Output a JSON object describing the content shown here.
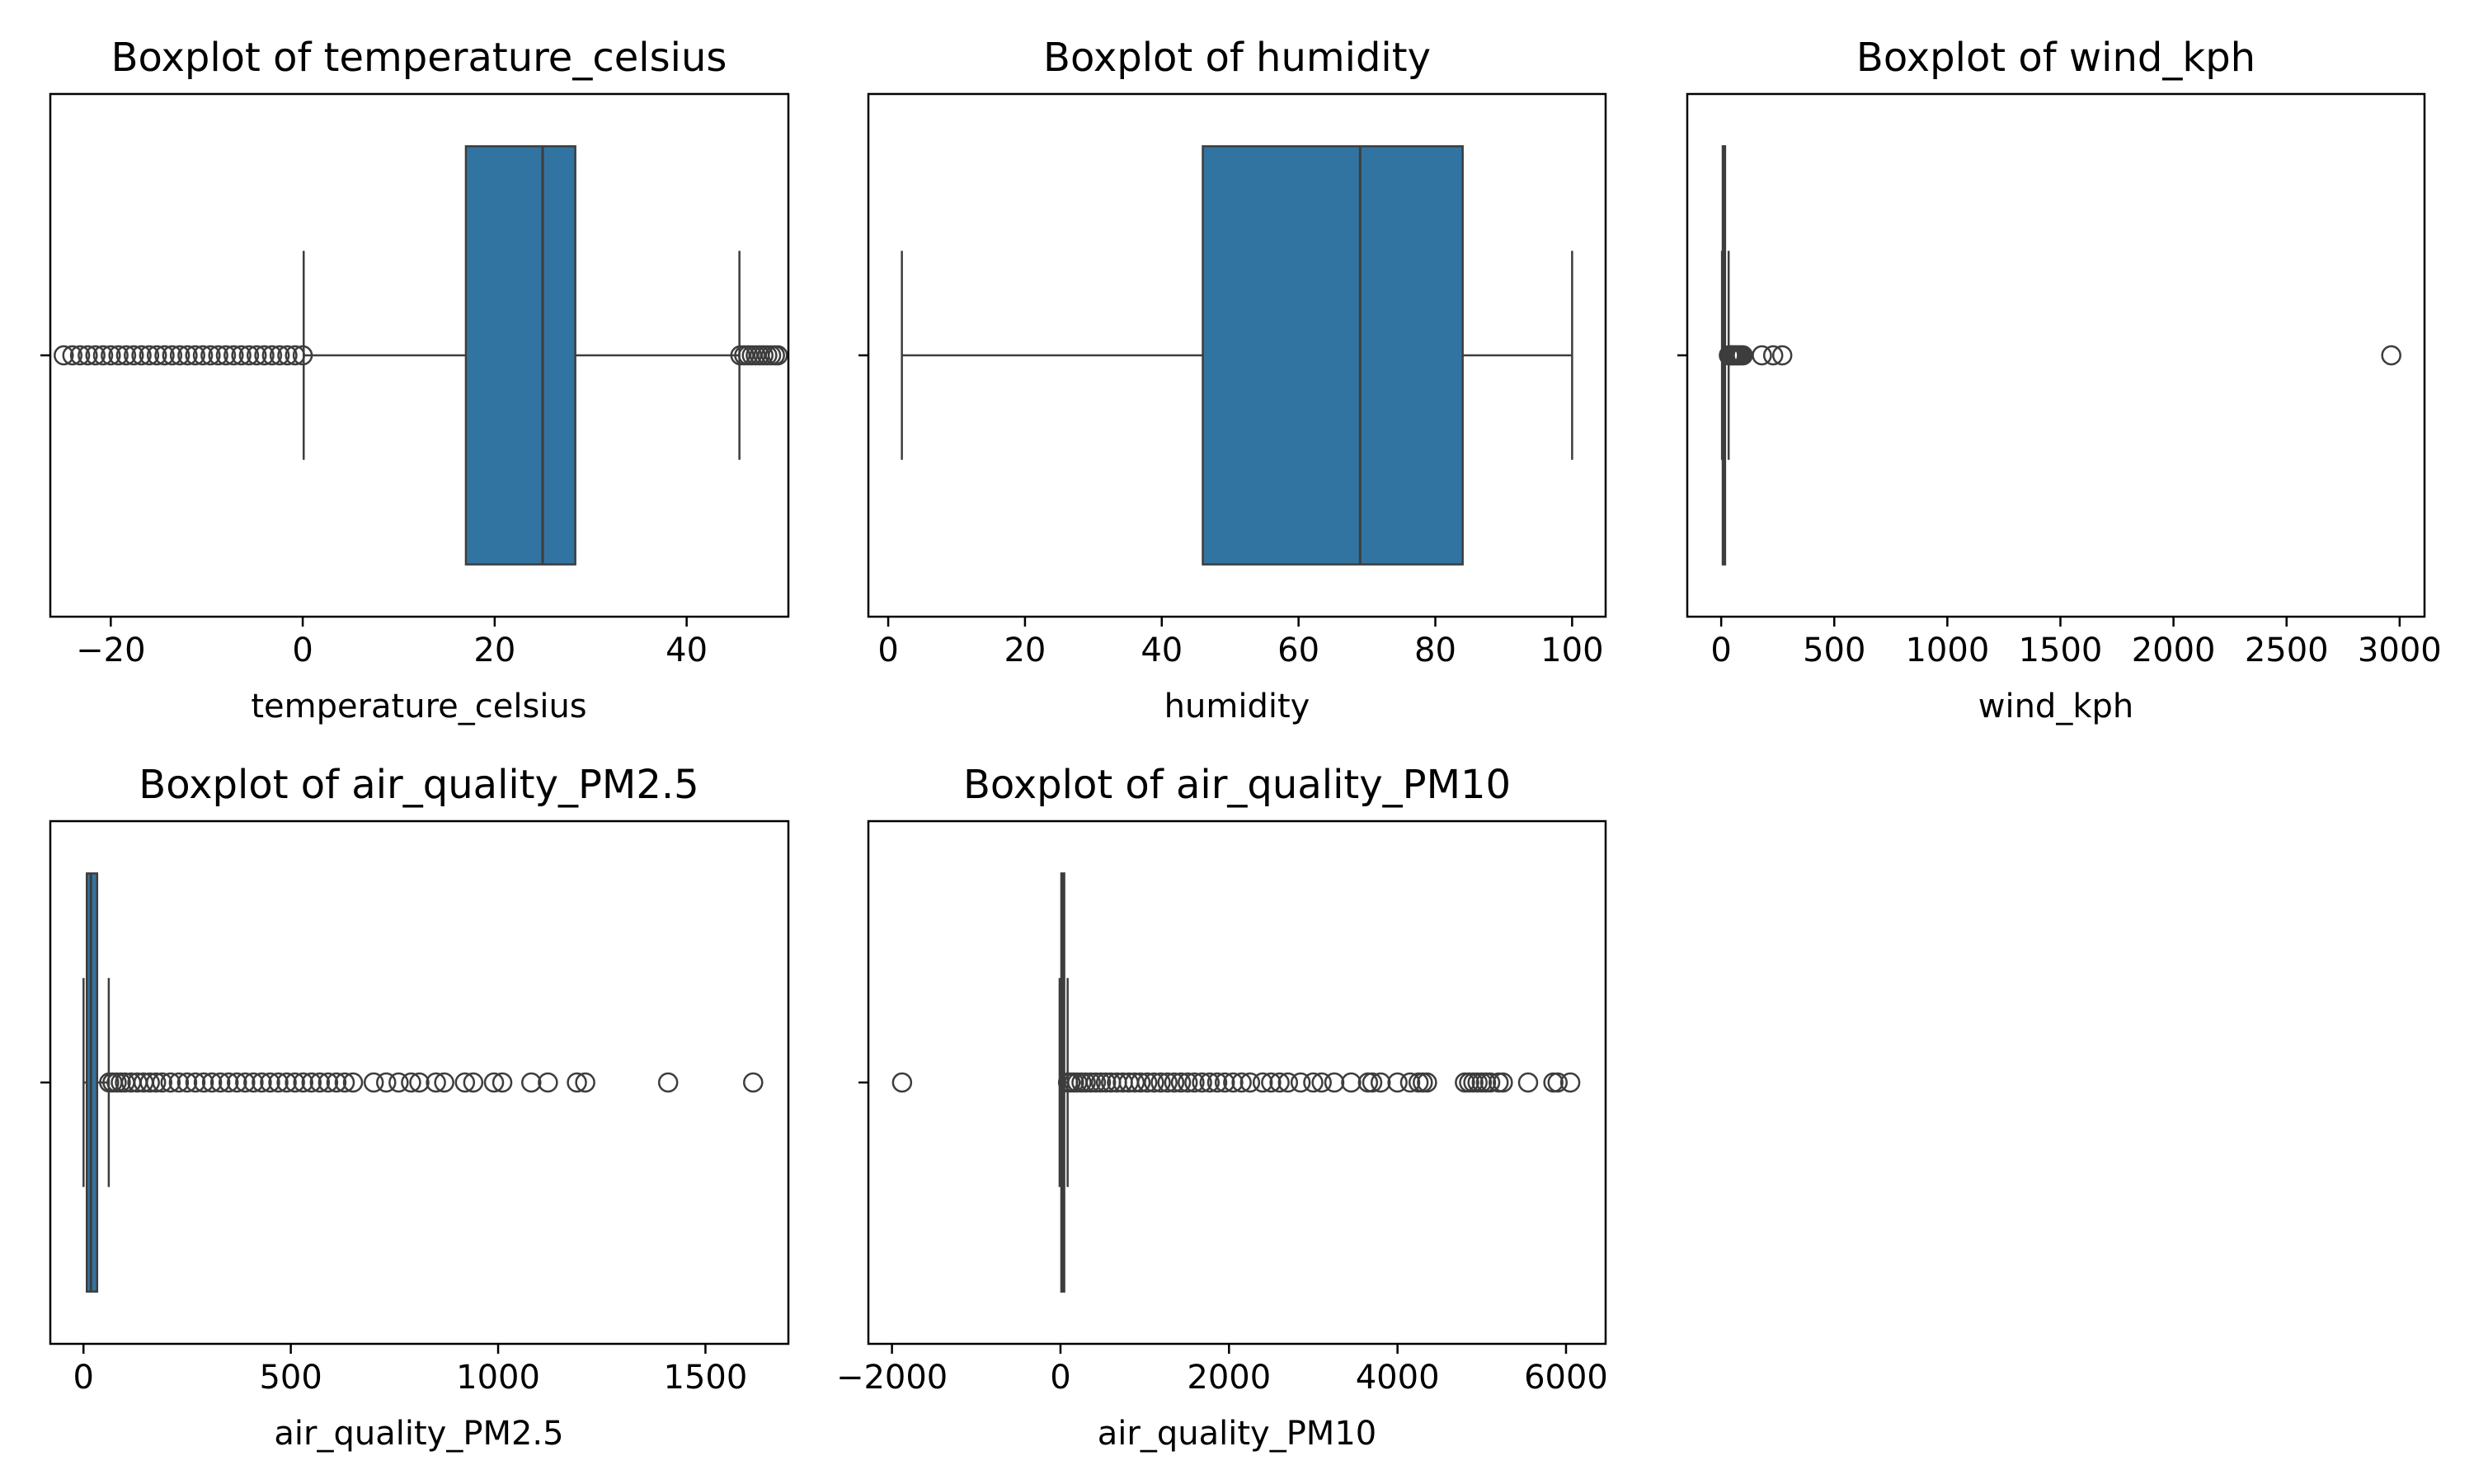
{
  "chart_data": [
    {
      "type": "boxplot",
      "title": "Boxplot of temperature_celsius",
      "xlabel": "temperature_celsius",
      "xlim": [
        -26.3,
        50.6
      ],
      "xticks": [
        -20,
        0,
        20,
        40
      ],
      "xtick_labels": [
        "−20",
        "0",
        "20",
        "40"
      ],
      "box": {
        "whisker_low": 0.1,
        "q1": 17.0,
        "median": 25.0,
        "q3": 28.4,
        "whisker_high": 45.5
      },
      "outliers": [
        -24.9,
        -24.0,
        -23.2,
        -22.4,
        -21.6,
        -20.8,
        -20.0,
        -19.2,
        -18.4,
        -17.6,
        -16.8,
        -16.0,
        -15.2,
        -14.4,
        -13.6,
        -12.8,
        -12.0,
        -11.2,
        -10.4,
        -9.6,
        -8.8,
        -8.0,
        -7.2,
        -6.4,
        -5.6,
        -4.8,
        -4.0,
        -3.2,
        -2.4,
        -1.6,
        -0.8,
        0.0,
        45.6,
        46.0,
        46.4,
        46.8,
        47.2,
        47.6,
        48.0,
        48.4,
        48.8,
        49.2,
        49.5
      ]
    },
    {
      "type": "boxplot",
      "title": "Boxplot of humidity",
      "xlabel": "humidity",
      "xlim": [
        -2.9,
        104.9
      ],
      "xticks": [
        0,
        20,
        40,
        60,
        80,
        100
      ],
      "xtick_labels": [
        "0",
        "20",
        "40",
        "60",
        "80",
        "100"
      ],
      "box": {
        "whisker_low": 2,
        "q1": 46,
        "median": 69,
        "q3": 84,
        "whisker_high": 100
      },
      "outliers": []
    },
    {
      "type": "boxplot",
      "title": "Boxplot of wind_kph",
      "xlabel": "wind_kph",
      "xlim": [
        -150,
        3110
      ],
      "xticks": [
        0,
        500,
        1000,
        1500,
        2000,
        2500,
        3000
      ],
      "xtick_labels": [
        "0",
        "500",
        "1000",
        "1500",
        "2000",
        "2500",
        "3000"
      ],
      "box": {
        "whisker_low": 3.6,
        "q1": 6.8,
        "median": 11.5,
        "q3": 17.3,
        "whisker_high": 33
      },
      "outliers": [
        34,
        38,
        42,
        47,
        52,
        58,
        64,
        70,
        76,
        82,
        90,
        96,
        180,
        230,
        270,
        2963
      ]
    },
    {
      "type": "boxplot",
      "title": "Boxplot of air_quality_PM2.5",
      "xlabel": "air_quality_PM2.5",
      "xlim": [
        -80,
        1700
      ],
      "xticks": [
        0,
        500,
        1000,
        1500
      ],
      "xtick_labels": [
        "0",
        "500",
        "1000",
        "1500"
      ],
      "box": {
        "whisker_low": 0.2,
        "q1": 8.0,
        "median": 18.0,
        "q3": 33.0,
        "whisker_high": 61
      },
      "outliers": [
        62,
        70,
        80,
        90,
        100,
        115,
        130,
        145,
        160,
        175,
        190,
        210,
        230,
        250,
        270,
        290,
        310,
        330,
        350,
        370,
        390,
        410,
        430,
        450,
        470,
        490,
        510,
        530,
        550,
        570,
        590,
        610,
        630,
        650,
        700,
        730,
        760,
        790,
        810,
        850,
        870,
        920,
        940,
        990,
        1010,
        1080,
        1120,
        1190,
        1210,
        1410,
        1615
      ]
    },
    {
      "type": "boxplot",
      "title": "Boxplot of air_quality_PM10",
      "xlabel": "air_quality_PM10",
      "xlim": [
        -2280,
        6470
      ],
      "xticks": [
        -2000,
        0,
        2000,
        4000,
        6000
      ],
      "xtick_labels": [
        "−2000",
        "0",
        "2000",
        "4000",
        "6000"
      ],
      "box": {
        "whisker_low": -10,
        "q1": 10,
        "median": 25,
        "q3": 45,
        "whisker_high": 85
      },
      "outliers": [
        -1880,
        90,
        120,
        160,
        200,
        250,
        300,
        360,
        420,
        480,
        540,
        600,
        670,
        740,
        810,
        880,
        950,
        1030,
        1110,
        1190,
        1270,
        1350,
        1430,
        1510,
        1590,
        1680,
        1770,
        1860,
        1950,
        2050,
        2150,
        2250,
        2400,
        2500,
        2600,
        2700,
        2850,
        3000,
        3100,
        3250,
        3450,
        3650,
        3700,
        3800,
        4000,
        4150,
        4250,
        4300,
        4350,
        4800,
        4850,
        4900,
        4950,
        5000,
        5050,
        5100,
        5200,
        5250,
        5550,
        5850,
        5900,
        6050
      ]
    }
  ],
  "colors": {
    "box_fill": "#3274a1",
    "line": "#3d3d3d",
    "axis": "#000000",
    "background": "#ffffff"
  }
}
